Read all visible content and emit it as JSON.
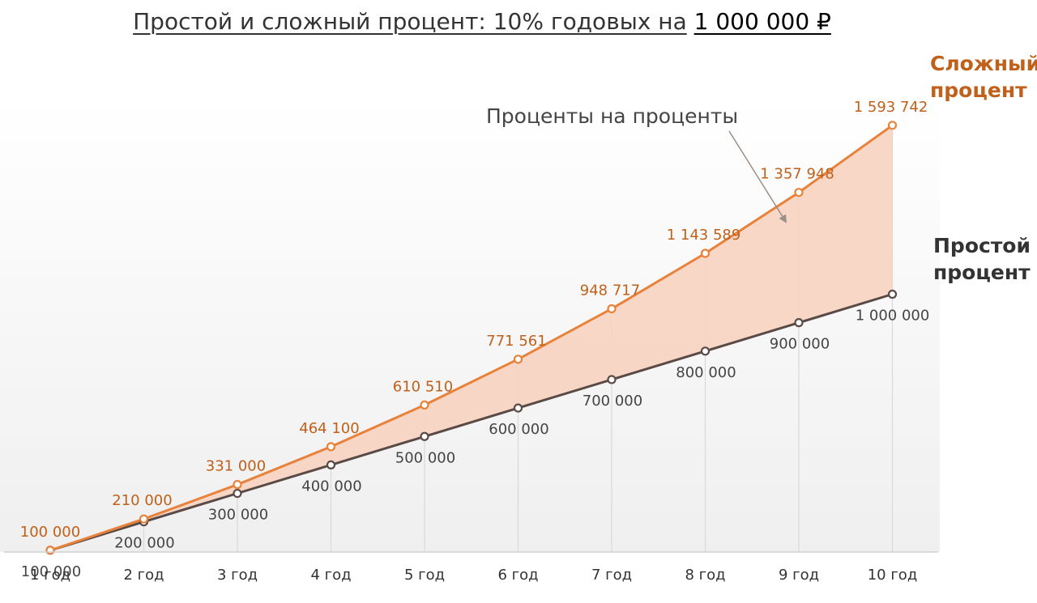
{
  "title": {
    "main": "Простой и сложный процент: 10% годовых на",
    "amount": "1 000 000 ₽"
  },
  "annotation": "Проценты на проценты",
  "colors": {
    "compound": "#e8823a",
    "compound_text": "#c0601a",
    "simple": "#5a4a45",
    "simple_text": "#444444",
    "fill": "#f8d3c1",
    "axis_text": "#333333",
    "annotation_text": "#444444"
  },
  "chart_data": {
    "type": "line",
    "categories": [
      "1 год",
      "2 год",
      "3 год",
      "4 год",
      "5 год",
      "6 год",
      "7 год",
      "8 год",
      "9 год",
      "10 год"
    ],
    "series": [
      {
        "name": "Сложный процент",
        "values": [
          100000,
          210000,
          331000,
          464100,
          610510,
          771561,
          948717,
          1143589,
          1357948,
          1593742
        ],
        "labels": [
          "100 000",
          "210 000",
          "331 000",
          "464 100",
          "610 510",
          "771 561",
          "948 717",
          "1 143 589",
          "1 357 948",
          "1 593 742"
        ]
      },
      {
        "name": "Простой процент",
        "values": [
          100000,
          200000,
          300000,
          400000,
          500000,
          600000,
          700000,
          800000,
          900000,
          1000000
        ],
        "labels": [
          "100 000",
          "200 000",
          "300 000",
          "400 000",
          "500 000",
          "600 000",
          "700 000",
          "800 000",
          "900 000",
          "1 000 000"
        ]
      }
    ],
    "shaded_area": "between series",
    "ylim": [
      0,
      1700000
    ],
    "grid": "vertical lines at each year"
  },
  "series_labels": {
    "compound": [
      "Сложный",
      "процент"
    ],
    "simple": [
      "Простой",
      "процент"
    ]
  }
}
